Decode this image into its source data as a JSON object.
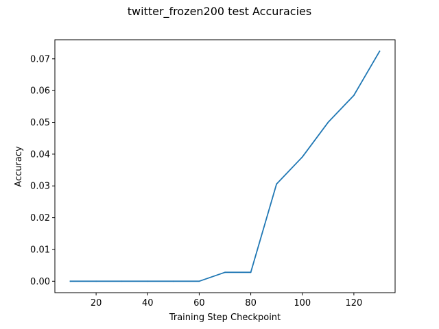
{
  "chart_data": {
    "type": "line",
    "title": "twitter_frozen200 test Accuracies",
    "xlabel": "Training Step Checkpoint",
    "ylabel": "Accuracy",
    "xlim": [
      4,
      136
    ],
    "ylim": [
      -0.0036,
      0.076
    ],
    "x_ticks": [
      20,
      40,
      60,
      80,
      100,
      120
    ],
    "x_tick_labels": [
      "20",
      "40",
      "60",
      "80",
      "100",
      "120"
    ],
    "y_ticks": [
      0.0,
      0.01,
      0.02,
      0.03,
      0.04,
      0.05,
      0.06,
      0.07
    ],
    "y_tick_labels": [
      "0.00",
      "0.01",
      "0.02",
      "0.03",
      "0.04",
      "0.05",
      "0.06",
      "0.07"
    ],
    "grid": false,
    "series": [
      {
        "color": "#1f77b4",
        "x": [
          10,
          20,
          30,
          40,
          50,
          60,
          70,
          80,
          90,
          100,
          110,
          120,
          130
        ],
        "y": [
          0.0,
          0.0,
          0.0,
          0.0,
          0.0,
          0.0,
          0.0028,
          0.0028,
          0.0306,
          0.0391,
          0.05,
          0.0585,
          0.0724
        ]
      }
    ]
  }
}
